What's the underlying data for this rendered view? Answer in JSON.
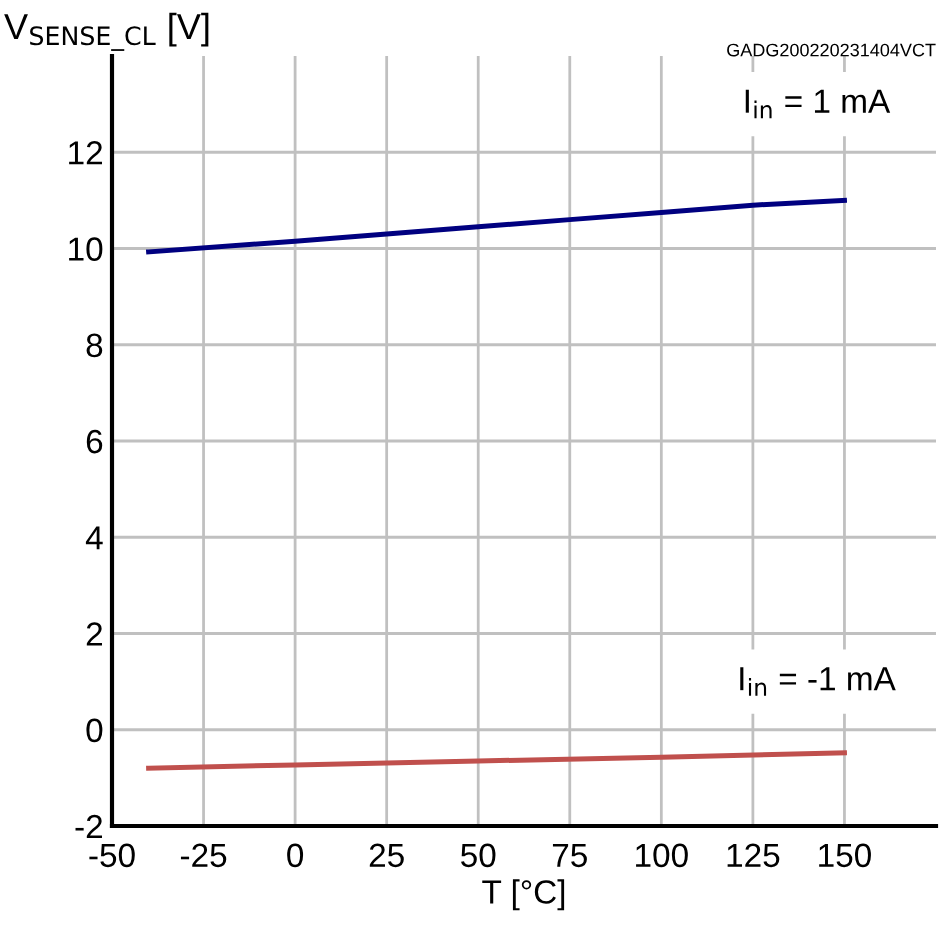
{
  "chart_data": {
    "type": "line",
    "ylabel": "V$_{SENSE_CL}$ [V]",
    "xlabel": "T [°C]",
    "annotations": [
      "GADG200220231404VCT",
      "I$_{in}$ = 1 mA",
      "I$_{in}$ = -1 mA"
    ],
    "series": [
      {
        "color": "#000080",
        "x": [
          -40,
          0,
          25,
          50,
          75,
          100,
          125,
          150
        ],
        "values": [
          9.93,
          10.15,
          10.3,
          10.45,
          10.6,
          10.75,
          10.9,
          11.0
        ]
      },
      {
        "color": "#c0504d",
        "x": [
          -40,
          0,
          50,
          100,
          150
        ],
        "values": [
          -0.8,
          -0.73,
          -0.65,
          -0.57,
          -0.48
        ]
      }
    ],
    "xlim": [
      -50,
      175
    ],
    "xticks": [
      -50,
      -25,
      0,
      25,
      50,
      75,
      100,
      125,
      150
    ],
    "ylim": [
      -2,
      14
    ],
    "yticks": [
      -2,
      0,
      2,
      4,
      6,
      8,
      10,
      12
    ],
    "grid": true,
    "legend": false
  }
}
